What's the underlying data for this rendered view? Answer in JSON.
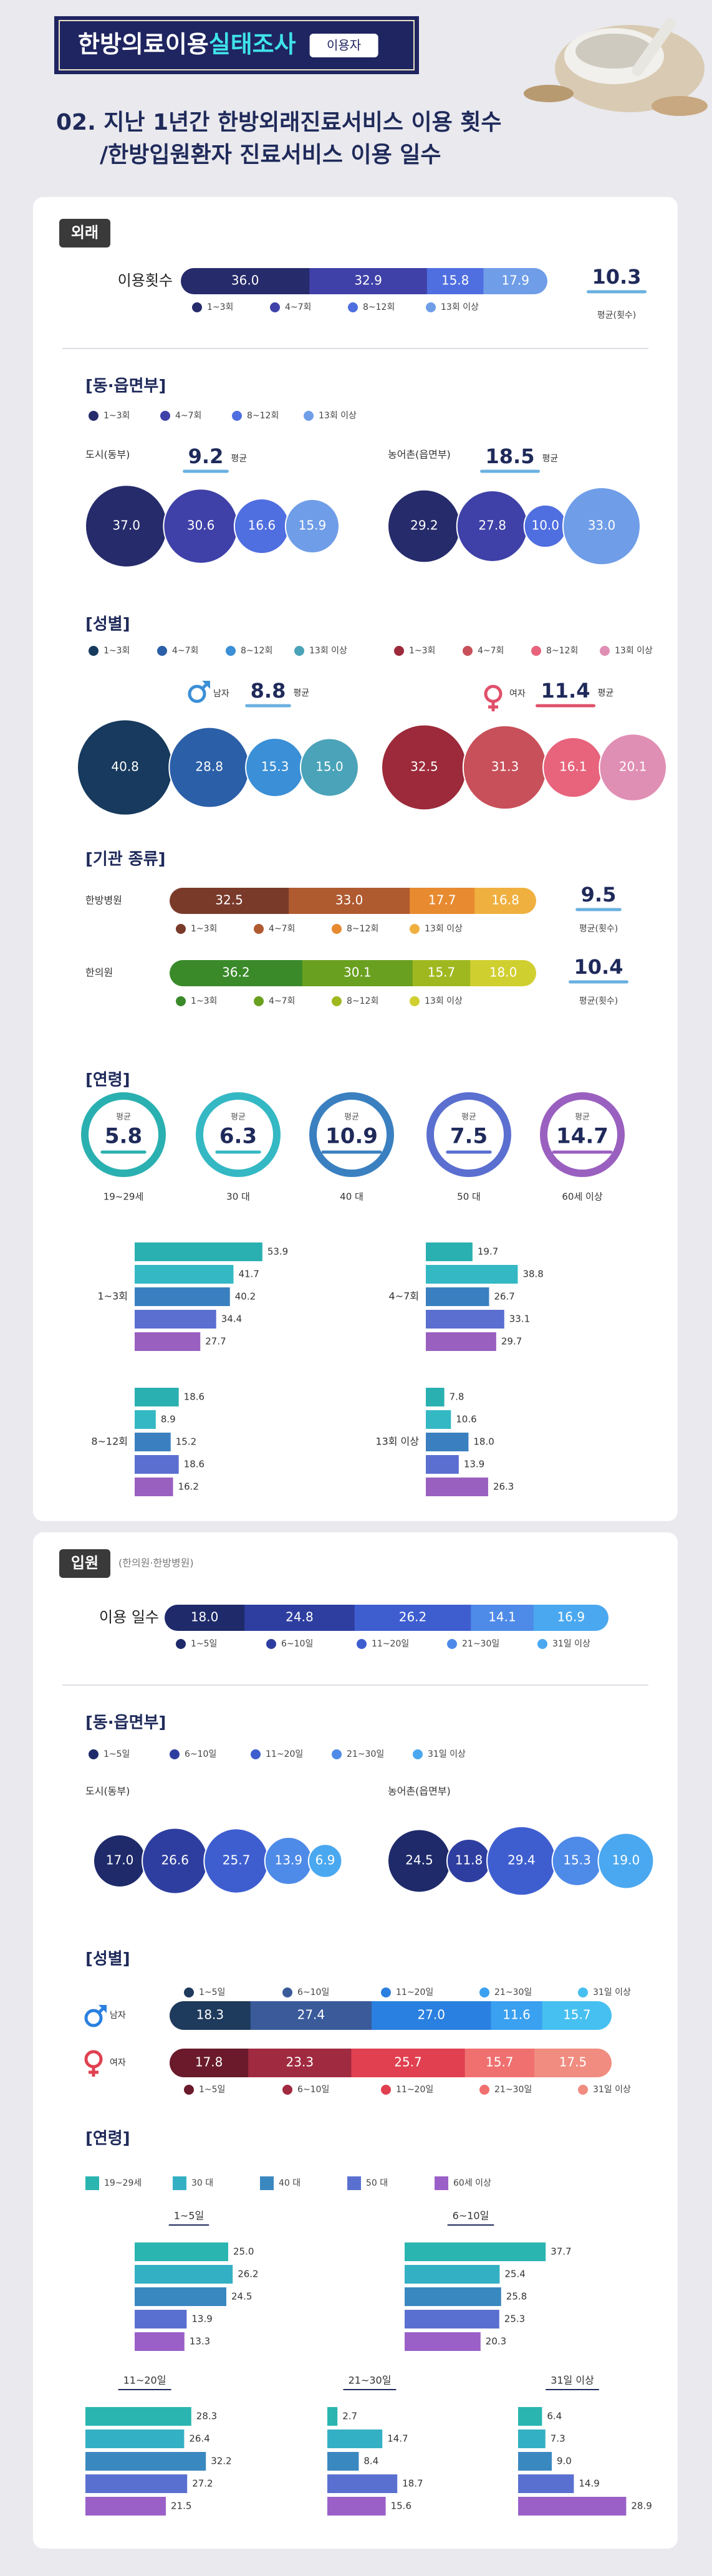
{
  "header": {
    "title": "한방의료이용",
    "title_highlight": "실태조사",
    "badge": "이용자"
  },
  "heading": {
    "line1": "02. 지난 1년간 한방외래진료서비스 이용 횟수",
    "line2": "/한방입원환자 진료서비스 이용 일수"
  },
  "outpatient": {
    "tag": "외래",
    "categories": [
      "1~3회",
      "4~7회",
      "8~12회",
      "13회 이상"
    ],
    "colors": [
      "#262b6b",
      "#3f41a8",
      "#4f6ee0",
      "#6f9de8"
    ],
    "total": {
      "label": "이용횟수",
      "values": [
        36.0,
        32.9,
        15.8,
        17.9
      ],
      "value_labels": [
        "36.0",
        "32.9",
        "15.8",
        "17.9"
      ],
      "avg": 10.3,
      "avg_label": "평균(횟수)"
    },
    "region": {
      "title": "[동·읍면부]",
      "avg_word": "평균",
      "groups": [
        {
          "label": "도시(동부)",
          "avg": 9.2,
          "values": [
            37.0,
            30.6,
            16.6,
            15.9
          ],
          "value_labels": [
            "37.0",
            "30.6",
            "16.6",
            "15.9"
          ]
        },
        {
          "label": "농어촌(읍면부)",
          "avg": 18.5,
          "values": [
            29.2,
            27.8,
            10.0,
            33.0
          ],
          "value_labels": [
            "29.2",
            "27.8",
            "10.0",
            "33.0"
          ]
        }
      ]
    },
    "gender": {
      "title": "[성별]",
      "avg_word": "평균",
      "groups": [
        {
          "label": "남자",
          "avg": 8.8,
          "colors": [
            "#173a5e",
            "#2b5fa8",
            "#3a8fd6",
            "#4aa3b8"
          ],
          "values": [
            40.8,
            28.8,
            15.3,
            15.0
          ],
          "value_labels": [
            "40.8",
            "28.8",
            "15.3",
            "15.0"
          ]
        },
        {
          "label": "여자",
          "avg": 11.4,
          "colors": [
            "#9c2a3a",
            "#c8505a",
            "#e8637c",
            "#e08fb4"
          ],
          "values": [
            32.5,
            31.3,
            16.1,
            20.1
          ]
        }
      ]
    },
    "institution": {
      "title": "[기관 종류]",
      "groups": [
        {
          "label": "한방병원",
          "avg": 9.5,
          "colors": [
            "#7a3a2a",
            "#b05a30",
            "#e88a30",
            "#f0b040"
          ],
          "values": [
            32.5,
            33.0,
            17.7,
            16.8
          ],
          "value_labels": [
            "32.5",
            "33.0",
            "17.7",
            "16.8"
          ]
        },
        {
          "label": "한의원",
          "avg": 10.4,
          "colors": [
            "#3a8a2a",
            "#6aa020",
            "#a0b820",
            "#d0cf30"
          ],
          "values": [
            36.2,
            30.1,
            15.7,
            18.0
          ],
          "value_labels": [
            "36.2",
            "30.1",
            "15.7",
            "18.0"
          ]
        }
      ]
    },
    "age": {
      "title": "[연령]",
      "avg_word": "평균",
      "groups": [
        "19~29세",
        "30 대",
        "40 대",
        "50 대",
        "60세 이상"
      ],
      "colors": [
        "#2ab0b0",
        "#34b8c4",
        "#3a80c0",
        "#5a6fd0",
        "#9a60c0"
      ],
      "avgs": [
        5.8,
        6.3,
        10.9,
        7.5,
        14.7
      ],
      "by_count": [
        {
          "values": [
            53.9,
            41.7,
            40.2,
            34.4,
            27.7
          ]
        },
        {
          "values": [
            19.7,
            38.8,
            26.7,
            33.1,
            29.7
          ]
        },
        {
          "values": [
            18.6,
            8.9,
            15.2,
            18.6,
            16.2
          ]
        },
        {
          "values": [
            7.8,
            10.6,
            18.0,
            13.9,
            26.3
          ],
          "value_labels": [
            "7.8",
            "10.6",
            "18.0",
            "13.9",
            "26.3"
          ]
        }
      ]
    }
  },
  "inpatient": {
    "tag": "입원",
    "note": "(한의원·한방병원)",
    "categories": [
      "1~5일",
      "6~10일",
      "11~20일",
      "21~30일",
      "31일 이상"
    ],
    "colors": [
      "#1e2a6a",
      "#2e3ea0",
      "#3e5ed0",
      "#4e8ae8",
      "#4aa8f0"
    ],
    "total": {
      "label": "이용 일수",
      "values": [
        18.0,
        24.8,
        26.2,
        14.1,
        16.9
      ],
      "value_labels": [
        "18.0",
        "24.8",
        "26.2",
        "14.1",
        "16.9"
      ]
    },
    "region": {
      "title": "[동·읍면부]",
      "groups": [
        {
          "label": "도시(동부)",
          "values": [
            17.0,
            26.6,
            25.7,
            13.9,
            6.9
          ],
          "value_labels": [
            "17.0",
            "26.6",
            "25.7",
            "13.9",
            "6.9"
          ]
        },
        {
          "label": "농어촌(읍면부)",
          "values": [
            24.5,
            11.8,
            29.4,
            15.3,
            19.0
          ],
          "value_labels": [
            "24.5",
            "11.8",
            "29.4",
            "15.3",
            "19.0"
          ]
        }
      ]
    },
    "gender": {
      "title": "[성별]",
      "groups": [
        {
          "label": "남자",
          "colors": [
            "#1e3a5c",
            "#3a5a9a",
            "#2a80e0",
            "#3aa0f0",
            "#46c0f0"
          ],
          "values": [
            18.3,
            27.4,
            27.0,
            11.6,
            15.7
          ],
          "value_labels": [
            "18.3",
            "27.4",
            "27.0",
            "11.6",
            "15.7"
          ]
        },
        {
          "label": "여자",
          "colors": [
            "#6a1a2a",
            "#a02a40",
            "#e04050",
            "#f07070",
            "#f08c80"
          ],
          "values": [
            17.8,
            23.3,
            25.7,
            15.7,
            17.5
          ]
        }
      ]
    },
    "age": {
      "title": "[연령]",
      "groups": [
        "19~29세",
        "30 대",
        "40 대",
        "50 대",
        "60세 이상"
      ],
      "colors": [
        "#2ab5b0",
        "#34b0c4",
        "#3a88c0",
        "#5a70d0",
        "#9a60c8"
      ],
      "by_days": [
        {
          "values": [
            25.0,
            26.2,
            24.5,
            13.9,
            13.3
          ],
          "value_labels": [
            "25.0",
            "26.2",
            "24.5",
            "13.9",
            "13.3"
          ]
        },
        {
          "values": [
            37.7,
            25.4,
            25.8,
            25.3,
            20.3
          ]
        },
        {
          "values": [
            28.3,
            26.4,
            32.2,
            27.2,
            21.5
          ]
        },
        {
          "values": [
            2.7,
            14.7,
            8.4,
            18.7,
            15.6
          ]
        },
        {
          "values": [
            6.4,
            7.3,
            9.0,
            14.9,
            28.9
          ],
          "value_labels": [
            "6.4",
            "7.3",
            "9.0",
            "14.9",
            "28.9"
          ]
        }
      ]
    }
  }
}
